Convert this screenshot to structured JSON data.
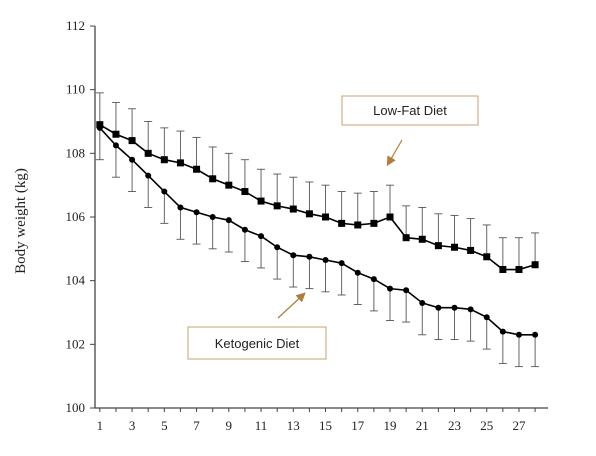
{
  "chart_data": {
    "type": "line",
    "ylabel": "Body weight (kg)",
    "xlabel": "",
    "ylim": [
      100,
      112
    ],
    "xlim": [
      1,
      28
    ],
    "y_ticks": [
      100,
      102,
      104,
      106,
      108,
      110,
      112
    ],
    "x_ticks": [
      1,
      3,
      5,
      7,
      9,
      11,
      13,
      15,
      17,
      19,
      21,
      23,
      25,
      27
    ],
    "grid": false,
    "x": [
      1,
      2,
      3,
      4,
      5,
      6,
      7,
      8,
      9,
      10,
      11,
      12,
      13,
      14,
      15,
      16,
      17,
      18,
      19,
      20,
      21,
      22,
      23,
      24,
      25,
      26,
      27,
      28
    ],
    "series": [
      {
        "name": "Low-Fat Diet",
        "marker": "square",
        "values": [
          108.9,
          108.6,
          108.4,
          108.0,
          107.8,
          107.7,
          107.5,
          107.2,
          107.0,
          106.8,
          106.5,
          106.35,
          106.25,
          106.1,
          106.0,
          105.8,
          105.75,
          105.8,
          106.0,
          105.35,
          105.3,
          105.1,
          105.05,
          104.95,
          104.75,
          104.35,
          104.35,
          104.5
        ],
        "error_upper": [
          109.9,
          109.6,
          109.4,
          109.0,
          108.8,
          108.7,
          108.5,
          108.2,
          108.0,
          107.8,
          107.5,
          107.35,
          107.25,
          107.1,
          107.0,
          106.8,
          106.75,
          106.8,
          107.0,
          106.35,
          106.3,
          106.1,
          106.05,
          105.95,
          105.75,
          105.35,
          105.35,
          105.5
        ]
      },
      {
        "name": "Ketogenic Diet",
        "marker": "circle",
        "values": [
          108.8,
          108.25,
          107.8,
          107.3,
          106.8,
          106.3,
          106.15,
          106.0,
          105.9,
          105.6,
          105.4,
          105.05,
          104.8,
          104.75,
          104.65,
          104.55,
          104.25,
          104.05,
          103.75,
          103.7,
          103.3,
          103.15,
          103.15,
          103.1,
          102.85,
          102.4,
          102.3,
          102.3
        ],
        "error_lower": [
          107.8,
          107.25,
          106.8,
          106.3,
          105.8,
          105.3,
          105.15,
          105.0,
          104.9,
          104.6,
          104.4,
          104.05,
          103.8,
          103.75,
          103.65,
          103.55,
          103.25,
          103.05,
          102.75,
          102.7,
          102.3,
          102.15,
          102.15,
          102.1,
          101.85,
          101.4,
          101.3,
          101.3
        ]
      }
    ],
    "annotations": [
      {
        "text": "Low-Fat Diet",
        "series": "Low-Fat Diet"
      },
      {
        "text": "Ketogenic Diet",
        "series": "Ketogenic Diet"
      }
    ],
    "colors": {
      "line": "#000000",
      "axis": "#444444",
      "callout_border": "#c8a070",
      "arrow": "#b07d3a"
    }
  }
}
